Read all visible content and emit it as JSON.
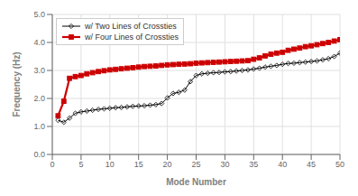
{
  "chart_data": {
    "type": "line",
    "xlabel": "Mode Number",
    "ylabel": "Frequency (Hz)",
    "x": [
      1,
      2,
      3,
      4,
      5,
      6,
      7,
      8,
      9,
      10,
      11,
      12,
      13,
      14,
      15,
      16,
      17,
      18,
      19,
      20,
      21,
      22,
      23,
      24,
      25,
      26,
      27,
      28,
      29,
      30,
      31,
      32,
      33,
      34,
      35,
      36,
      37,
      38,
      39,
      40,
      41,
      42,
      43,
      44,
      45,
      46,
      47,
      48,
      49,
      50
    ],
    "series": [
      {
        "name": "w/ Two Lines of Crossties",
        "color": "#000000",
        "marker": "diamond",
        "line_style": "solid",
        "values": [
          1.22,
          1.15,
          1.3,
          1.47,
          1.52,
          1.55,
          1.58,
          1.61,
          1.63,
          1.65,
          1.67,
          1.68,
          1.7,
          1.72,
          1.73,
          1.74,
          1.76,
          1.78,
          1.82,
          2.02,
          2.18,
          2.22,
          2.3,
          2.6,
          2.82,
          2.88,
          2.9,
          2.92,
          2.93,
          2.95,
          2.96,
          2.98,
          3.0,
          3.02,
          3.05,
          3.08,
          3.12,
          3.15,
          3.18,
          3.22,
          3.25,
          3.26,
          3.28,
          3.3,
          3.32,
          3.34,
          3.38,
          3.42,
          3.5,
          3.62
        ]
      },
      {
        "name": "w/ Four Lines of Crossties",
        "color": "#CC0000",
        "marker": "square",
        "line_style": "solid",
        "values": [
          1.38,
          1.9,
          2.72,
          2.78,
          2.82,
          2.88,
          2.92,
          2.96,
          2.99,
          3.02,
          3.04,
          3.06,
          3.08,
          3.1,
          3.12,
          3.14,
          3.15,
          3.16,
          3.18,
          3.2,
          3.21,
          3.22,
          3.23,
          3.24,
          3.26,
          3.27,
          3.28,
          3.29,
          3.3,
          3.31,
          3.32,
          3.33,
          3.34,
          3.35,
          3.4,
          3.45,
          3.52,
          3.58,
          3.62,
          3.65,
          3.72,
          3.76,
          3.8,
          3.85,
          3.88,
          3.92,
          3.96,
          4.0,
          4.05,
          4.1
        ]
      }
    ],
    "xlim": [
      0,
      50
    ],
    "ylim": [
      0.0,
      5.0
    ],
    "xticks": [
      0,
      5,
      10,
      15,
      20,
      25,
      30,
      35,
      40,
      45,
      50
    ],
    "yticks": [
      {
        "value": 0.0,
        "label": "0.0"
      },
      {
        "value": 1.0,
        "label": "1.0"
      },
      {
        "value": 2.0,
        "label": "2.0"
      },
      {
        "value": 3.0,
        "label": "3.0"
      },
      {
        "value": 4.0,
        "label": "4.0"
      },
      {
        "value": 5.0,
        "label": "5.0"
      }
    ],
    "grid": true,
    "legend": "upper left"
  }
}
